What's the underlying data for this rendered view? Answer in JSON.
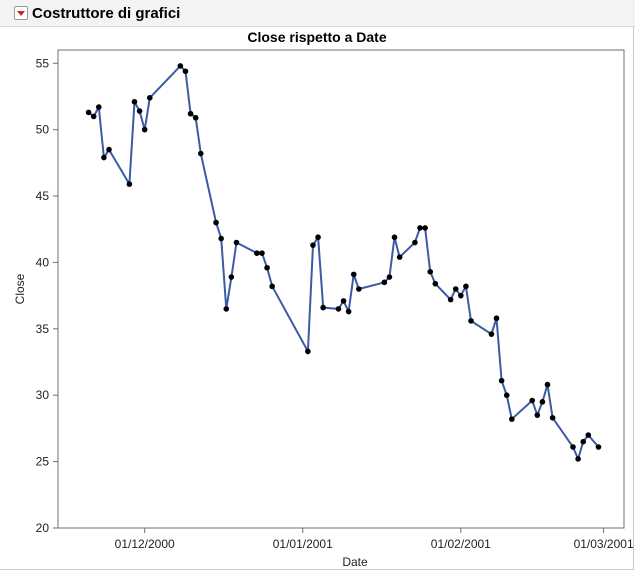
{
  "header": {
    "title": "Costruttore di grafici",
    "menu_icon": "red-triangle-down-icon"
  },
  "colors": {
    "line": "#3b5ba5",
    "marker": "#000000",
    "axis": "#6f6f6f"
  },
  "chart_data": {
    "type": "line",
    "title": "Close rispetto a Date",
    "xlabel": "Date",
    "ylabel": "Close",
    "ylim": [
      20,
      56
    ],
    "xlim": [
      "2000-11-14",
      "2001-03-05"
    ],
    "grid": false,
    "y_ticks": [
      20,
      25,
      30,
      35,
      40,
      45,
      50,
      55
    ],
    "x_ticks": [
      {
        "date": "2000-12-01",
        "label": "01/12/2000"
      },
      {
        "date": "2001-01-01",
        "label": "01/01/2001"
      },
      {
        "date": "2001-02-01",
        "label": "01/02/2001"
      },
      {
        "date": "2001-03-01",
        "label": "01/03/2001"
      }
    ],
    "series": [
      {
        "points": [
          [
            "2000-11-20",
            51.3
          ],
          [
            "2000-11-21",
            51.0
          ],
          [
            "2000-11-22",
            51.7
          ],
          [
            "2000-11-23",
            47.9
          ],
          [
            "2000-11-24",
            48.5
          ],
          [
            "2000-11-28",
            45.9
          ],
          [
            "2000-11-29",
            52.1
          ],
          [
            "2000-11-30",
            51.4
          ],
          [
            "2000-12-01",
            50.0
          ],
          [
            "2000-12-02",
            52.4
          ],
          [
            "2000-12-08",
            54.8
          ],
          [
            "2000-12-09",
            54.4
          ],
          [
            "2000-12-10",
            51.2
          ],
          [
            "2000-12-11",
            50.9
          ],
          [
            "2000-12-12",
            48.2
          ],
          [
            "2000-12-15",
            43.0
          ],
          [
            "2000-12-16",
            41.8
          ],
          [
            "2000-12-17",
            36.5
          ],
          [
            "2000-12-18",
            38.9
          ],
          [
            "2000-12-19",
            41.5
          ],
          [
            "2000-12-23",
            40.7
          ],
          [
            "2000-12-24",
            40.7
          ],
          [
            "2000-12-25",
            39.6
          ],
          [
            "2000-12-26",
            38.2
          ],
          [
            "2001-01-02",
            33.3
          ],
          [
            "2001-01-03",
            41.3
          ],
          [
            "2001-01-04",
            41.9
          ],
          [
            "2001-01-05",
            36.6
          ],
          [
            "2001-01-08",
            36.5
          ],
          [
            "2001-01-09",
            37.1
          ],
          [
            "2001-01-10",
            36.3
          ],
          [
            "2001-01-11",
            39.1
          ],
          [
            "2001-01-12",
            38.0
          ],
          [
            "2001-01-17",
            38.5
          ],
          [
            "2001-01-18",
            38.9
          ],
          [
            "2001-01-19",
            41.9
          ],
          [
            "2001-01-20",
            40.4
          ],
          [
            "2001-01-23",
            41.5
          ],
          [
            "2001-01-24",
            42.6
          ],
          [
            "2001-01-25",
            42.6
          ],
          [
            "2001-01-26",
            39.3
          ],
          [
            "2001-01-27",
            38.4
          ],
          [
            "2001-01-30",
            37.2
          ],
          [
            "2001-01-31",
            38.0
          ],
          [
            "2001-02-01",
            37.5
          ],
          [
            "2001-02-02",
            38.2
          ],
          [
            "2001-02-03",
            35.6
          ],
          [
            "2001-02-07",
            34.6
          ],
          [
            "2001-02-08",
            35.8
          ],
          [
            "2001-02-09",
            31.1
          ],
          [
            "2001-02-10",
            30.0
          ],
          [
            "2001-02-11",
            28.2
          ],
          [
            "2001-02-15",
            29.6
          ],
          [
            "2001-02-16",
            28.5
          ],
          [
            "2001-02-17",
            29.5
          ],
          [
            "2001-02-18",
            30.8
          ],
          [
            "2001-02-19",
            28.3
          ],
          [
            "2001-02-23",
            26.1
          ],
          [
            "2001-02-24",
            25.2
          ],
          [
            "2001-02-25",
            26.5
          ],
          [
            "2001-02-26",
            27.0
          ],
          [
            "2001-02-28",
            26.1
          ]
        ]
      }
    ]
  }
}
